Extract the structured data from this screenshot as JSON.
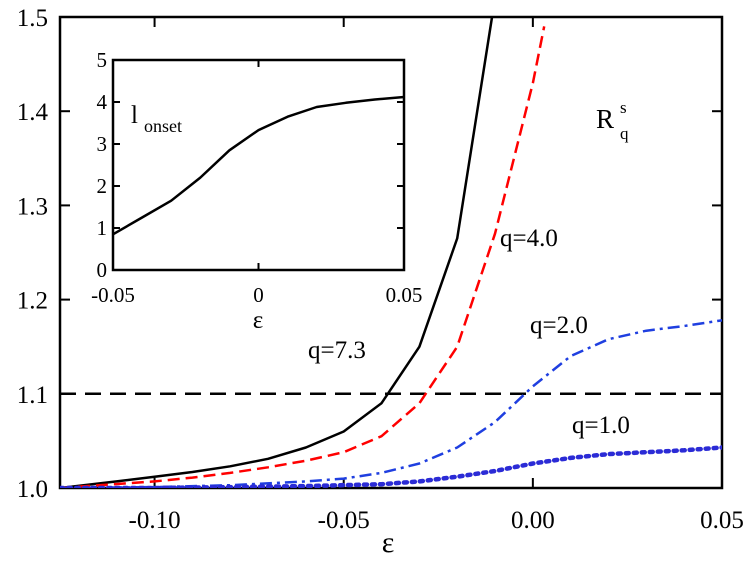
{
  "chart_data": [
    {
      "type": "line",
      "title": "",
      "xlabel": "ε",
      "ylabel": "",
      "corner_label": {
        "main": "R",
        "sub": "q",
        "sup": "s"
      },
      "xlim": [
        -0.125,
        0.05
      ],
      "ylim": [
        1.0,
        1.5
      ],
      "xticks": [
        -0.1,
        -0.05,
        0.0,
        0.05
      ],
      "xtick_labels": [
        "-0.10",
        "-0.05",
        "0.00",
        "0.05"
      ],
      "yticks": [
        1.0,
        1.1,
        1.2,
        1.3,
        1.4,
        1.5
      ],
      "ytick_labels": [
        "1.0",
        "1.1",
        "1.2",
        "1.3",
        "1.4",
        "1.5"
      ],
      "reference_line": {
        "y": 1.1,
        "style": "dashed",
        "color": "#000000"
      },
      "series": [
        {
          "name": "q=7.3",
          "label": "q=7.3",
          "color": "#000000",
          "style": "solid",
          "x": [
            -0.125,
            -0.11,
            -0.1,
            -0.09,
            -0.08,
            -0.07,
            -0.06,
            -0.05,
            -0.04,
            -0.03,
            -0.02,
            -0.01
          ],
          "y": [
            1.0,
            1.007,
            1.012,
            1.017,
            1.023,
            1.031,
            1.043,
            1.06,
            1.09,
            1.15,
            1.265,
            1.52
          ]
        },
        {
          "name": "q=4.0",
          "label": "q=4.0",
          "color": "#ff0000",
          "style": "dashed",
          "x": [
            -0.125,
            -0.1,
            -0.09,
            -0.08,
            -0.07,
            -0.06,
            -0.05,
            -0.04,
            -0.03,
            -0.02,
            -0.01,
            0.0,
            0.003
          ],
          "y": [
            1.0,
            1.007,
            1.011,
            1.016,
            1.022,
            1.029,
            1.038,
            1.055,
            1.09,
            1.15,
            1.27,
            1.43,
            1.49
          ]
        },
        {
          "name": "q=2.0",
          "label": "q=2.0",
          "color": "#1f3fe0",
          "style": "dashdot",
          "x": [
            -0.125,
            -0.1,
            -0.08,
            -0.06,
            -0.05,
            -0.04,
            -0.03,
            -0.02,
            -0.01,
            0.0,
            0.01,
            0.02,
            0.03,
            0.04,
            0.05
          ],
          "y": [
            1.0,
            1.001,
            1.003,
            1.007,
            1.01,
            1.016,
            1.026,
            1.043,
            1.07,
            1.108,
            1.14,
            1.158,
            1.167,
            1.172,
            1.178
          ]
        },
        {
          "name": "q=1.0",
          "label": "q=1.0",
          "color": "#2b2bd6",
          "style": "dotted",
          "x": [
            -0.125,
            -0.1,
            -0.08,
            -0.06,
            -0.04,
            -0.03,
            -0.02,
            -0.01,
            0.0,
            0.01,
            0.02,
            0.03,
            0.04,
            0.05
          ],
          "y": [
            1.0,
            1.0,
            1.001,
            1.002,
            1.004,
            1.007,
            1.012,
            1.018,
            1.026,
            1.032,
            1.036,
            1.038,
            1.04,
            1.043
          ]
        }
      ]
    },
    {
      "type": "line",
      "title": "",
      "xlabel": "ε",
      "ylabel": "",
      "corner_label": {
        "main": "l",
        "sub": "onset"
      },
      "xlim": [
        -0.05,
        0.05
      ],
      "ylim": [
        0,
        5
      ],
      "xticks": [
        -0.05,
        0.0,
        0.05
      ],
      "xtick_labels": [
        "-0.05",
        "0",
        "0.05"
      ],
      "yticks": [
        0,
        1,
        2,
        3,
        4,
        5
      ],
      "ytick_labels": [
        "0",
        "1",
        "2",
        "3",
        "4",
        "5"
      ],
      "series": [
        {
          "name": "onset",
          "color": "#000000",
          "style": "solid",
          "x": [
            -0.05,
            -0.04,
            -0.03,
            -0.02,
            -0.01,
            0.0,
            0.01,
            0.02,
            0.03,
            0.04,
            0.05
          ],
          "y": [
            0.85,
            1.25,
            1.65,
            2.2,
            2.85,
            3.33,
            3.65,
            3.88,
            3.98,
            4.06,
            4.12
          ]
        }
      ]
    }
  ]
}
